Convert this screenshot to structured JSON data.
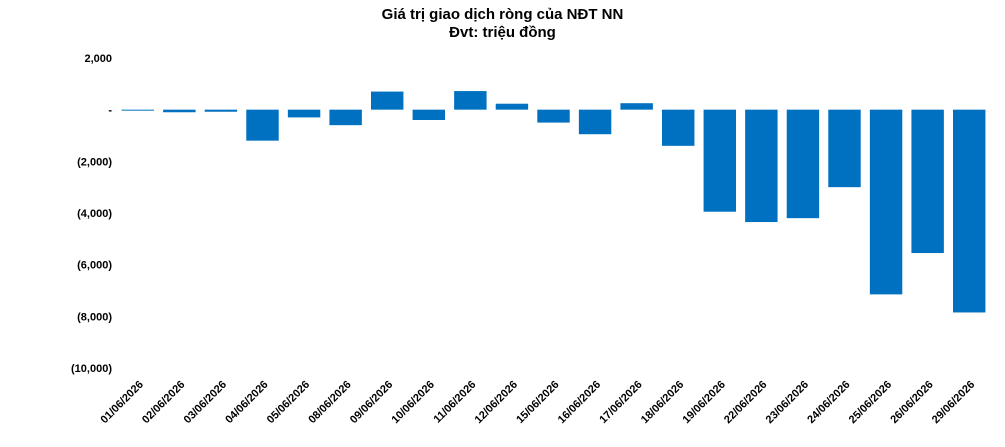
{
  "chart_data": {
    "type": "bar",
    "title": "Giá trị giao dịch ròng của NĐT NN",
    "subtitle": "Đvt: triệu đồng",
    "categories": [
      "01/06/2026",
      "02/06/2026",
      "03/06/2026",
      "04/06/2026",
      "05/06/2026",
      "08/06/2026",
      "09/06/2026",
      "10/06/2026",
      "11/06/2026",
      "12/06/2026",
      "15/06/2026",
      "16/06/2026",
      "17/06/2026",
      "18/06/2026",
      "19/06/2026",
      "22/06/2026",
      "23/06/2026",
      "24/06/2026",
      "25/06/2026",
      "26/06/2026",
      "29/06/2026"
    ],
    "values": [
      -30,
      -100,
      -80,
      -1200,
      -300,
      -600,
      700,
      -400,
      720,
      230,
      -500,
      -950,
      250,
      -1400,
      -3950,
      -4350,
      -4200,
      -3000,
      -7150,
      -5550,
      -7850
    ],
    "ylim": [
      -10000,
      2000
    ],
    "yticks": [
      2000,
      0,
      -2000,
      -4000,
      -6000,
      -8000,
      -10000
    ],
    "ytick_labels": [
      "2,000",
      "-",
      "(2,000)",
      "(4,000)",
      "(6,000)",
      "(8,000)",
      "(10,000)"
    ],
    "bar_color": "#0070C0",
    "grid": false,
    "legend": "none"
  }
}
